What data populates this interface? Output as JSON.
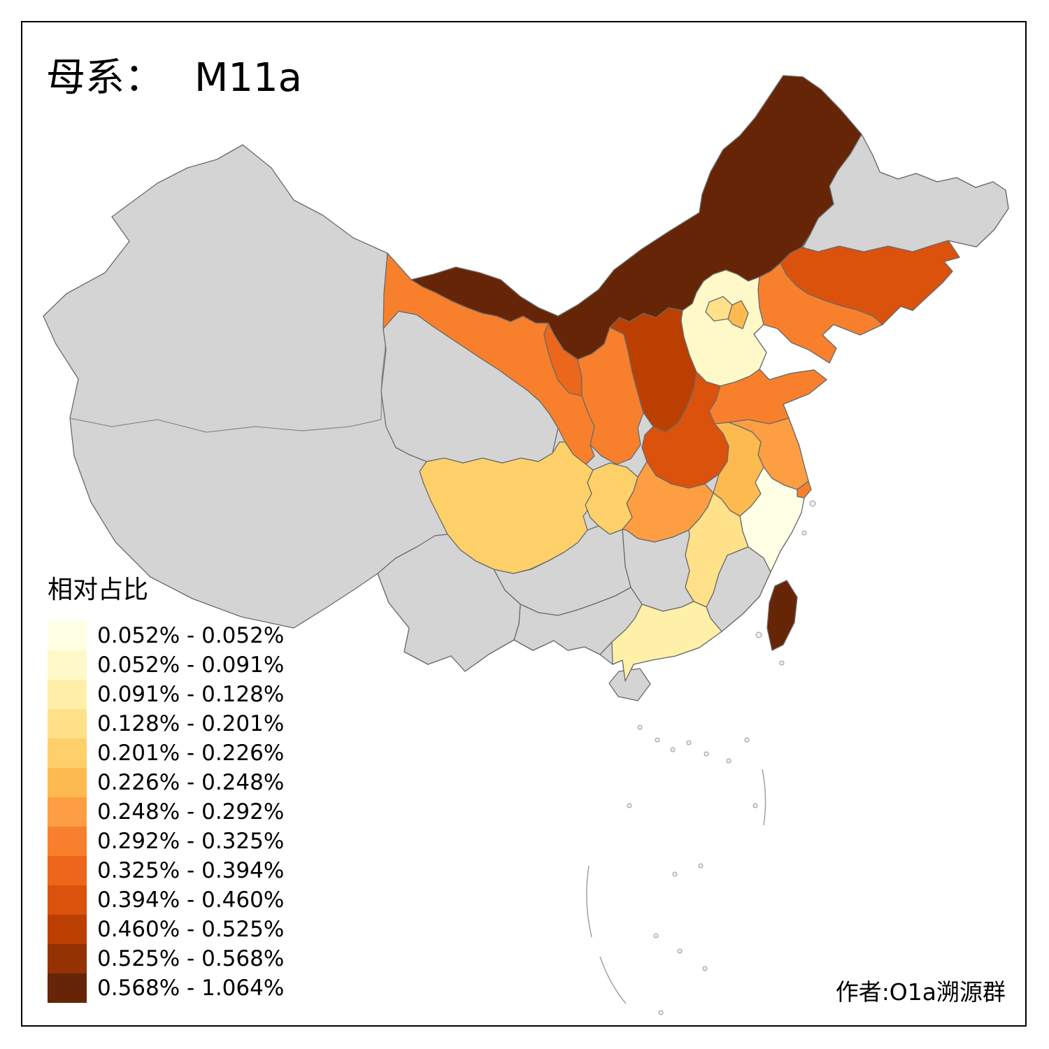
{
  "title": {
    "prefix": "母系：",
    "value": "M11a"
  },
  "legend": {
    "title": "相对占比"
  },
  "credit": "作者:O1a溯源群",
  "chart_data": {
    "type": "choropleth",
    "subject": "母系： M11a",
    "legend_title": "相对占比",
    "legend_position": "bottom-left",
    "unit": "%",
    "bins": [
      "0.052% - 0.052%",
      "0.052% - 0.091%",
      "0.091% - 0.128%",
      "0.128% - 0.201%",
      "0.201% - 0.226%",
      "0.226% - 0.248%",
      "0.248% - 0.292%",
      "0.292% - 0.325%",
      "0.325% - 0.394%",
      "0.394% - 0.460%",
      "0.460% - 0.525%",
      "0.525% - 0.568%",
      "0.568% - 1.064%"
    ],
    "bin_colors": [
      "#FFFFE5",
      "#FFF8C8",
      "#FEF0A8",
      "#FEE189",
      "#FDD06A",
      "#FDBA4F",
      "#FD9E42",
      "#F8802C",
      "#EC671B",
      "#DB520C",
      "#BC3F02",
      "#953203",
      "#662506"
    ],
    "no_data_color": "#D4D4D4",
    "border_color": "#6A6A6A",
    "regions": [
      {
        "id": "china-landmass",
        "bin": null
      },
      {
        "id": "xinjiang",
        "bin": null
      },
      {
        "id": "tibet",
        "bin": null
      },
      {
        "id": "qinghai",
        "bin": null
      },
      {
        "id": "gansu",
        "bin": 8
      },
      {
        "id": "inner-mongolia",
        "bin": 13
      },
      {
        "id": "heilongjiang",
        "bin": null
      },
      {
        "id": "jilin",
        "bin": 10
      },
      {
        "id": "liaoning",
        "bin": 8
      },
      {
        "id": "hebei",
        "bin": 2
      },
      {
        "id": "beijing",
        "bin": 4
      },
      {
        "id": "tianjin",
        "bin": 6
      },
      {
        "id": "shanxi",
        "bin": 11
      },
      {
        "id": "shaanxi",
        "bin": 8
      },
      {
        "id": "ningxia",
        "bin": 9
      },
      {
        "id": "shandong",
        "bin": 8
      },
      {
        "id": "henan",
        "bin": 10
      },
      {
        "id": "jiangsu",
        "bin": 7
      },
      {
        "id": "anhui",
        "bin": 6
      },
      {
        "id": "shanghai",
        "bin": 8
      },
      {
        "id": "zhejiang",
        "bin": 1
      },
      {
        "id": "hubei",
        "bin": 7
      },
      {
        "id": "chongqing",
        "bin": 5
      },
      {
        "id": "sichuan",
        "bin": 5
      },
      {
        "id": "jiangxi",
        "bin": 4
      },
      {
        "id": "hunan",
        "bin": null
      },
      {
        "id": "fujian",
        "bin": null
      },
      {
        "id": "guangdong",
        "bin": 3
      },
      {
        "id": "guangxi",
        "bin": null
      },
      {
        "id": "guizhou",
        "bin": null
      },
      {
        "id": "yunnan",
        "bin": null
      },
      {
        "id": "hainan",
        "bin": null
      },
      {
        "id": "taiwan",
        "bin": 13
      }
    ]
  }
}
